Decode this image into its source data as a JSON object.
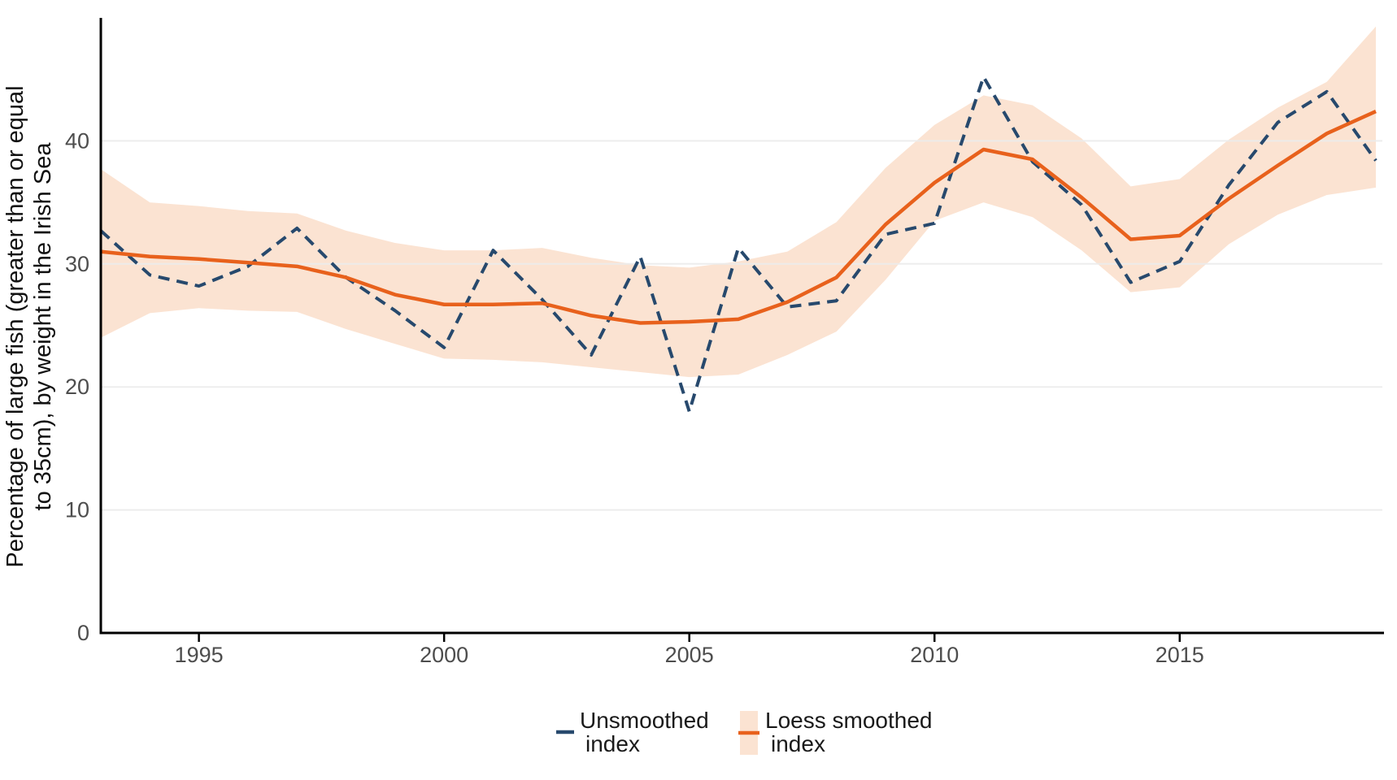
{
  "chart_data": {
    "type": "line",
    "title": "",
    "xlabel": "",
    "ylabel_line1": "Percentage of large fish (greater than or equal",
    "ylabel_line2": "to 35cm), by weight in the Irish Sea",
    "xlim": [
      1993,
      2019
    ],
    "ylim": [
      0,
      50
    ],
    "grid": "horizontal-only",
    "legend_position": "bottom",
    "x_ticks": {
      "values": [
        1995,
        2000,
        2005,
        2010,
        2015
      ],
      "labels": [
        "1995",
        "2000",
        "2005",
        "2010",
        "2015"
      ]
    },
    "y_ticks": {
      "values": [
        0,
        10,
        20,
        30,
        40
      ],
      "labels": [
        "0",
        "10",
        "20",
        "30",
        "40"
      ]
    },
    "y_gridlines": [
      10,
      20,
      30,
      40
    ],
    "x": [
      1993,
      1994,
      1995,
      1996,
      1997,
      1998,
      1999,
      2000,
      2001,
      2002,
      2003,
      2004,
      2005,
      2006,
      2007,
      2008,
      2009,
      2010,
      2011,
      2012,
      2013,
      2014,
      2015,
      2016,
      2017,
      2018,
      2019
    ],
    "series": [
      {
        "name": "Unsmoothed index",
        "style": "dashed",
        "values": [
          32.7,
          29.1,
          28.2,
          29.8,
          32.9,
          28.9,
          26.2,
          23.2,
          31.1,
          27.1,
          22.6,
          30.6,
          18.0,
          31.3,
          26.5,
          27.0,
          32.4,
          33.3,
          45.2,
          38.3,
          34.8,
          28.5,
          30.2,
          36.4,
          41.5,
          44.0,
          38.4
        ]
      },
      {
        "name": "Loess smoothed index",
        "style": "solid",
        "values": [
          31.0,
          30.6,
          30.4,
          30.1,
          29.8,
          28.9,
          27.5,
          26.7,
          26.7,
          26.8,
          25.8,
          25.2,
          25.3,
          25.5,
          26.9,
          28.9,
          33.2,
          36.6,
          39.3,
          38.5,
          35.4,
          32.0,
          32.3,
          35.3,
          38.0,
          40.6,
          42.4
        ],
        "ci_low": [
          24.0,
          26.0,
          26.4,
          26.2,
          26.1,
          24.7,
          23.5,
          22.3,
          22.2,
          22.0,
          21.6,
          21.2,
          20.8,
          21.0,
          22.6,
          24.5,
          28.7,
          33.5,
          35.0,
          33.8,
          31.1,
          27.7,
          28.1,
          31.6,
          34.0,
          35.6,
          36.2
        ],
        "ci_high": [
          37.7,
          35.0,
          34.7,
          34.3,
          34.1,
          32.7,
          31.7,
          31.1,
          31.1,
          31.3,
          30.5,
          29.9,
          29.7,
          30.2,
          31.0,
          33.4,
          37.8,
          41.3,
          43.7,
          42.9,
          40.2,
          36.3,
          36.9,
          40.1,
          42.7,
          44.8,
          49.3
        ]
      }
    ]
  },
  "legend": {
    "unsmoothed": {
      "line1": "Unsmoothed",
      "line2": "index"
    },
    "loess": {
      "line1": "Loess smoothed",
      "line2": "index"
    }
  },
  "colors": {
    "axis_line": "#000000",
    "tick_label": "#4d4d4d",
    "gridline": "#ececec",
    "unsmoothed_line": "#27496d",
    "loess_line": "#e8611c",
    "ci_band": "#fbe3d2",
    "legend_text": "#1a1a1a"
  }
}
